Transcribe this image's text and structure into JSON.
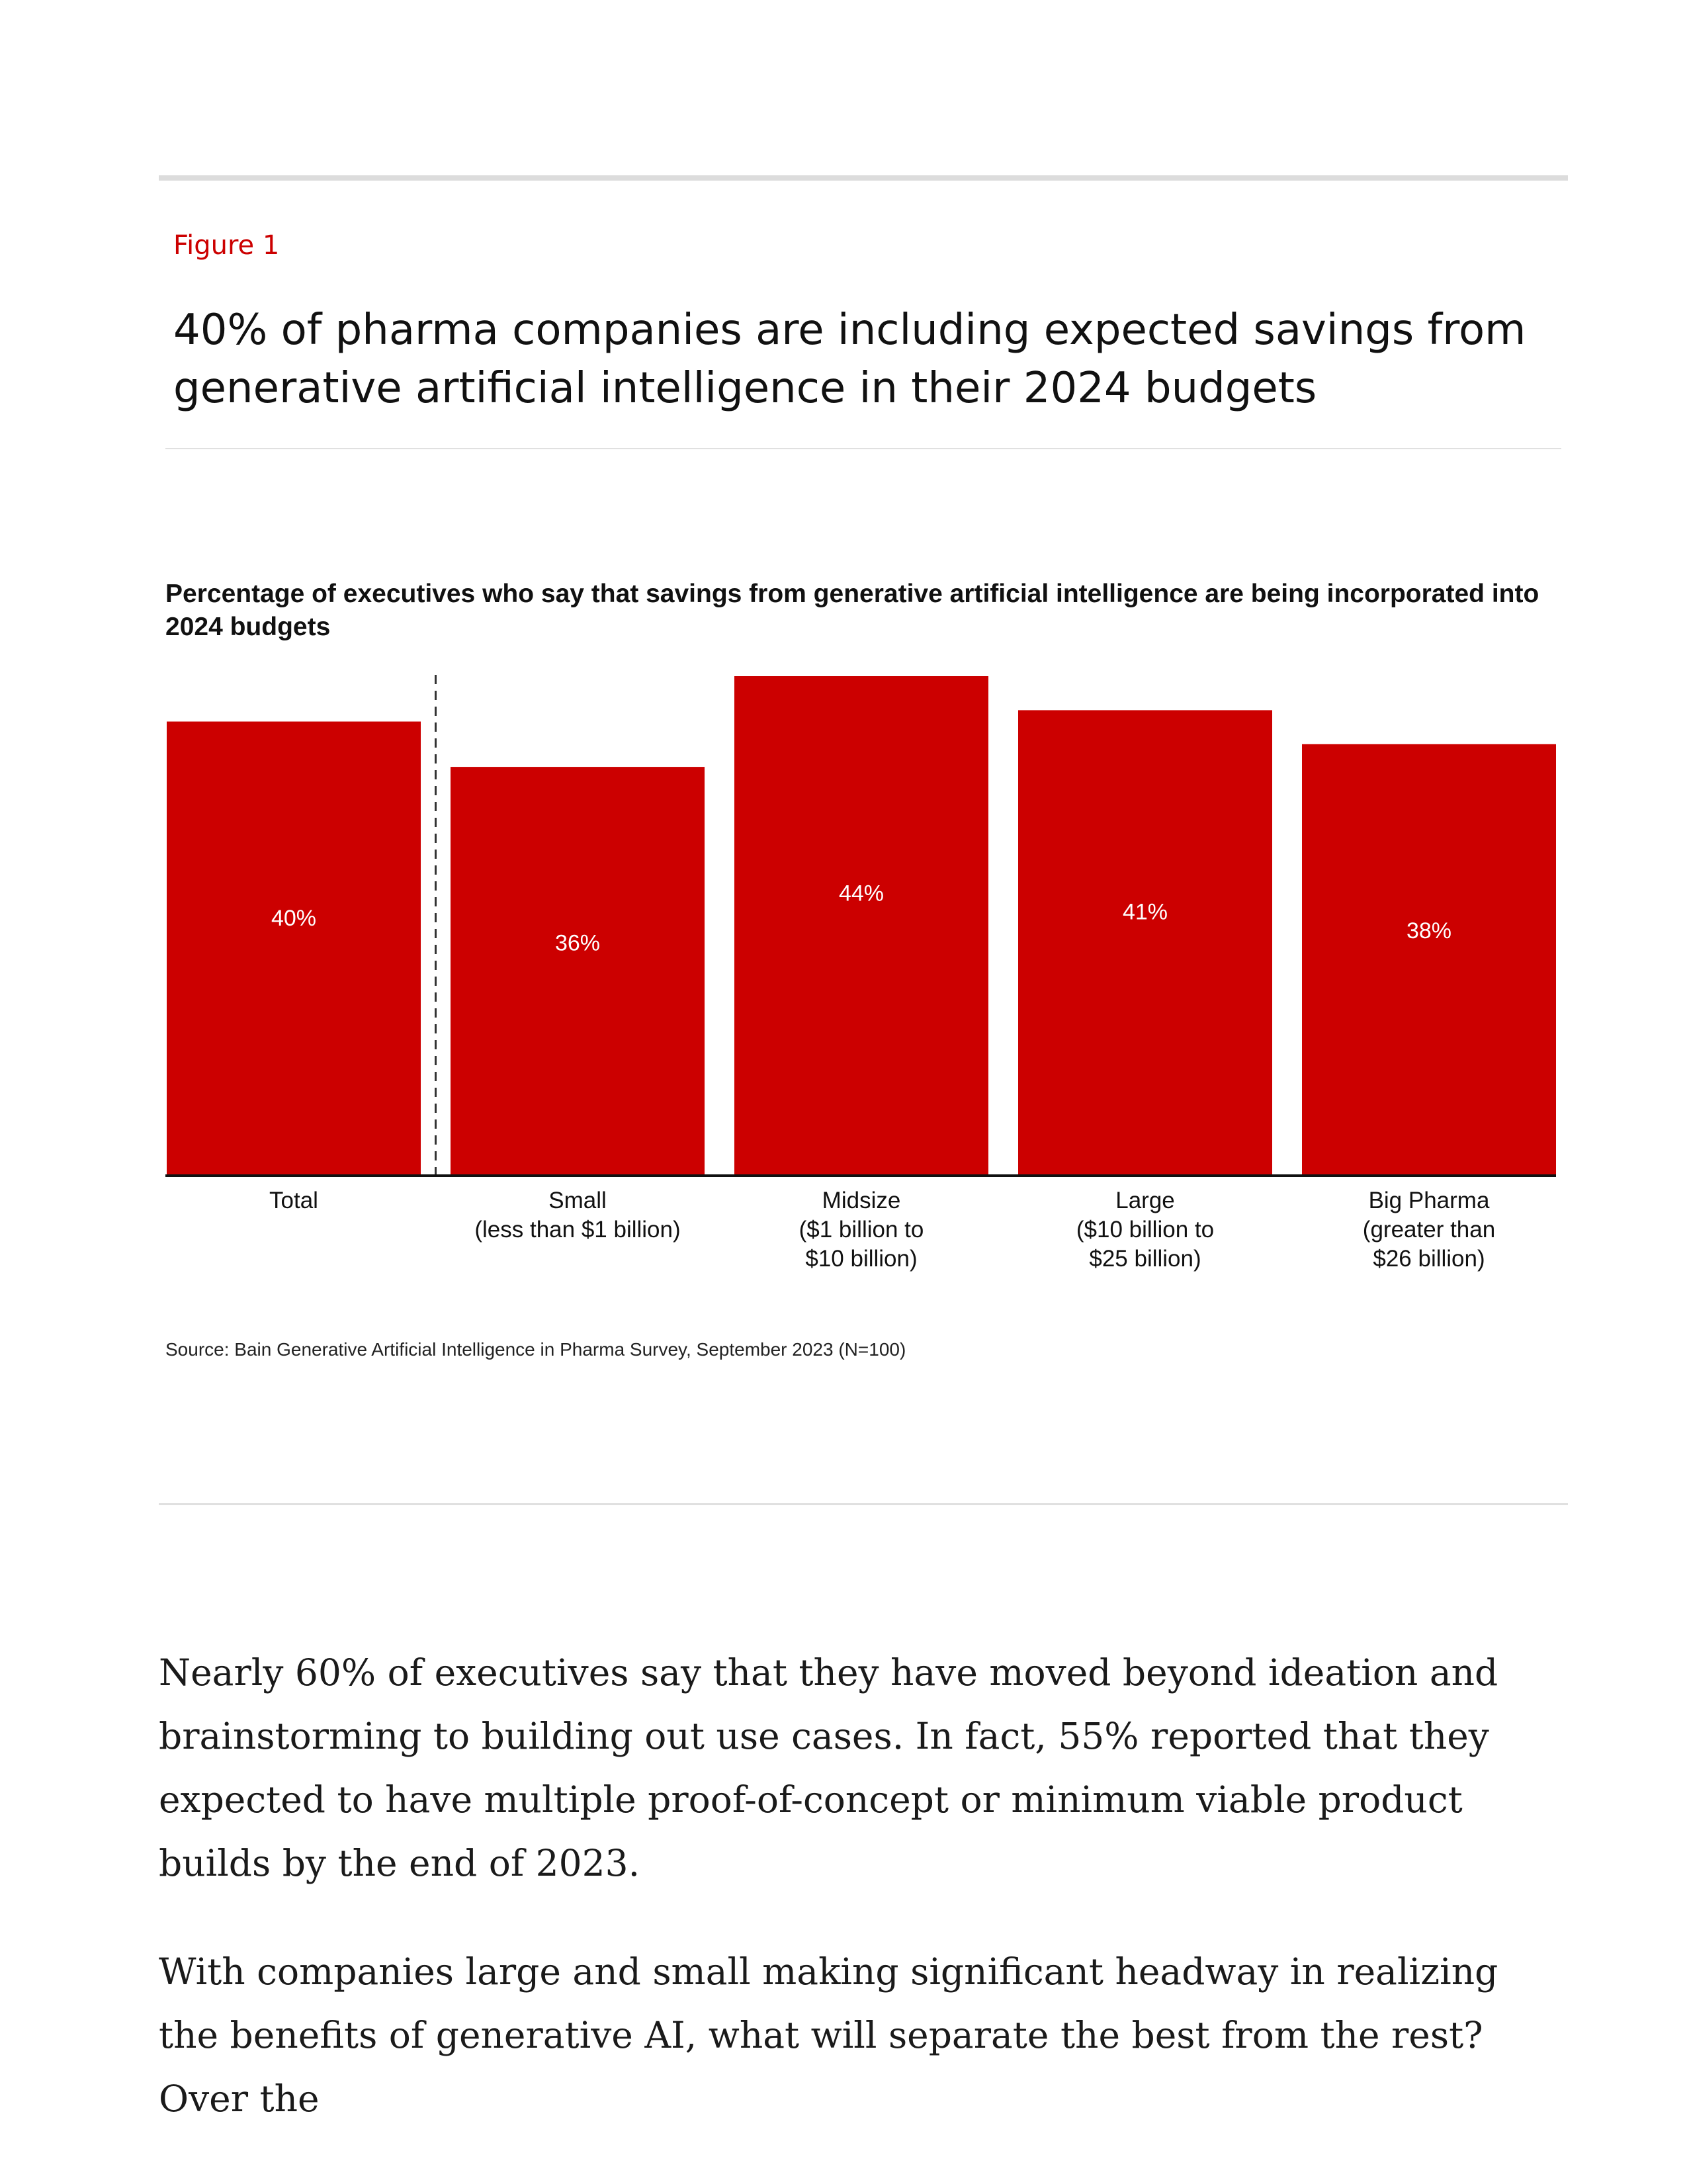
{
  "figure": {
    "label": "Figure 1",
    "title": "40% of pharma companies are including expected savings from generative artificial intelligence in their 2024 budgets"
  },
  "chart_data": {
    "type": "bar",
    "title": "Percentage of executives who say that savings from generative artificial intelligence are being incorporated into 2024 budgets",
    "categories": [
      [
        "Total"
      ],
      [
        "Small",
        "(less than $1 billion)"
      ],
      [
        "Midsize",
        "($1 billion to",
        "$10 billion)"
      ],
      [
        "Large",
        "($10 billion to",
        "$25 billion)"
      ],
      [
        "Big Pharma",
        "(greater than",
        "$26 billion)"
      ]
    ],
    "values": [
      40,
      36,
      44,
      41,
      38
    ],
    "value_labels": [
      "40%",
      "36%",
      "44%",
      "41%",
      "38%"
    ],
    "unit": "%",
    "bar_color": "#cc0000",
    "label_color": "#ffffff",
    "separator_after_first": true,
    "grid": false,
    "source": "Source: Bain Generative Artificial Intelligence in Pharma Survey, September 2023 (N=100)"
  },
  "body": {
    "paragraph_1": "Nearly 60% of executives say that they have moved beyond ideation and brainstorming to building out use cases. In fact, 55% reported that they expected to have multiple proof-of-concept or minimum viable product builds by the end of 2023.",
    "paragraph_2": "With companies large and small making significant headway in realizing the benefits of generative AI, what will separate the best from the rest? Over the"
  }
}
